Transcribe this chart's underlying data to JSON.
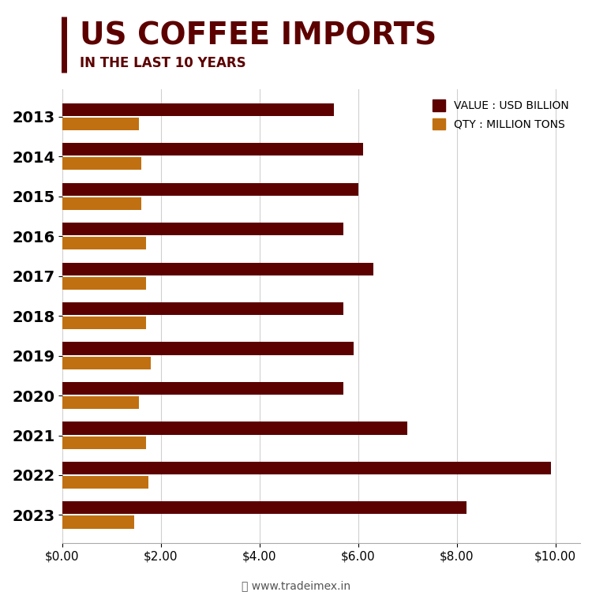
{
  "title_main": "US COFFEE IMPORTS",
  "title_sub": "IN THE LAST 10 YEARS",
  "years": [
    "2013",
    "2014",
    "2015",
    "2016",
    "2017",
    "2018",
    "2019",
    "2020",
    "2021",
    "2022",
    "2023"
  ],
  "value_usd": [
    5.5,
    6.1,
    6.0,
    5.7,
    6.3,
    5.7,
    5.9,
    5.7,
    7.0,
    9.9,
    8.2
  ],
  "qty_mt": [
    1.55,
    1.6,
    1.6,
    1.7,
    1.7,
    1.7,
    1.8,
    1.55,
    1.7,
    1.75,
    1.45
  ],
  "color_value": "#5C0000",
  "color_qty": "#C07010",
  "background_color": "#FFFFFF",
  "xticks": [
    0,
    2,
    4,
    6,
    8,
    10
  ],
  "xlim": [
    0,
    10.5
  ],
  "legend_value": "VALUE : USD BILLION",
  "legend_qty": "QTY : MILLION TONS",
  "footer": "⌖ www.tradeimex.in",
  "title_main_color": "#5C0000",
  "title_sub_color": "#5C0000",
  "title_main_fontsize": 28,
  "title_sub_fontsize": 12,
  "year_fontsize": 14,
  "xtick_fontsize": 11
}
